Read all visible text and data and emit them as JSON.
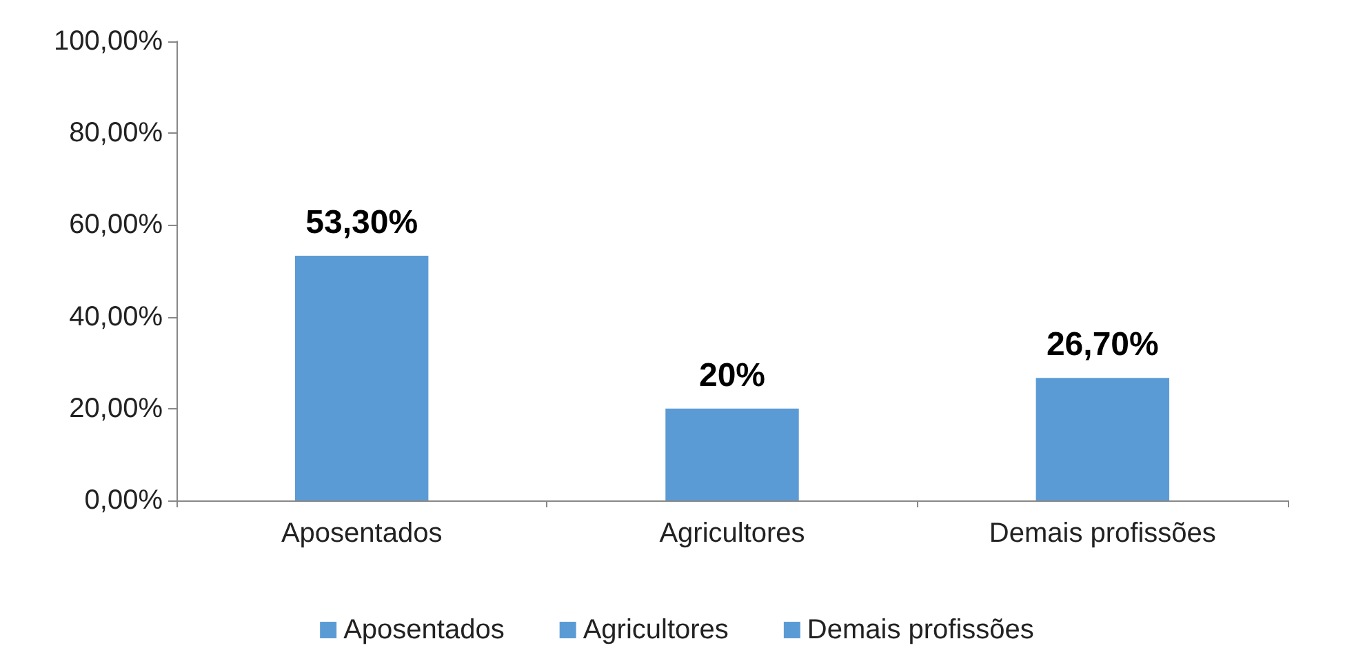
{
  "chart_data": {
    "type": "bar",
    "categories": [
      "Aposentados",
      "Agricultores",
      "Demais profissões"
    ],
    "series": [
      {
        "name": "Aposentados",
        "color": "#5b9bd5",
        "values": [
          53.3,
          null,
          null
        ],
        "value_labels": [
          "53,30%",
          null,
          null
        ]
      },
      {
        "name": "Agricultores",
        "color": "#5b9bd5",
        "values": [
          null,
          20,
          null
        ],
        "value_labels": [
          null,
          "20%",
          null
        ]
      },
      {
        "name": "Demais profissões",
        "color": "#5b9bd5",
        "values": [
          null,
          null,
          26.7
        ],
        "value_labels": [
          null,
          null,
          "26,70%"
        ]
      }
    ],
    "ylim": [
      0,
      100
    ],
    "yticks": [
      {
        "value": 0,
        "label": "0,00%"
      },
      {
        "value": 20,
        "label": "20,00%"
      },
      {
        "value": 40,
        "label": "40,00%"
      },
      {
        "value": 60,
        "label": "60,00%"
      },
      {
        "value": 80,
        "label": "80,00%"
      },
      {
        "value": 100,
        "label": "100,00%"
      }
    ],
    "grid": false,
    "legend": "bottom"
  }
}
